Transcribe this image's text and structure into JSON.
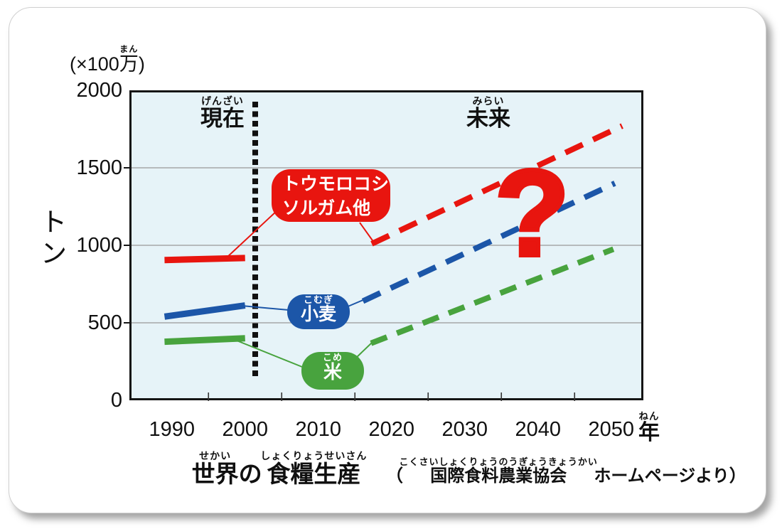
{
  "colors": {
    "corn_red": "#e8150f",
    "wheat_blue": "#1c56a8",
    "rice_green": "#48a33e",
    "plot_background": "#e6f3f8",
    "gridline": "#999999",
    "divider_black": "#101010"
  },
  "y_axis": {
    "unit_parts": [
      {
        "text": "(×100",
        "ruby": ""
      },
      {
        "text": "万",
        "ruby": "まん"
      },
      {
        "text": ")",
        "ruby": ""
      }
    ],
    "axis_title": "トン"
  },
  "x_axis": {
    "unit_parts": [
      {
        "text": "年",
        "ruby": "ねん"
      }
    ]
  },
  "period_labels": {
    "present_parts": [
      {
        "text": "現在",
        "ruby": "げんざい"
      }
    ],
    "future_parts": [
      {
        "text": "未来",
        "ruby": "みらい"
      }
    ]
  },
  "callouts": {
    "corn_line1": "トウモロコシ",
    "corn_line2": "ソルガム他",
    "wheat_parts": [
      {
        "text": "小麦",
        "ruby": "こむぎ"
      }
    ],
    "rice_parts": [
      {
        "text": "米",
        "ruby": "こめ"
      }
    ]
  },
  "annotation": {
    "question_mark": "?"
  },
  "footer": {
    "title_parts": [
      {
        "text": "世界",
        "ruby": "せかい"
      },
      {
        "text": "の",
        "ruby": ""
      },
      {
        "text": "食糧生産",
        "ruby": "しょくりょうせいさん"
      }
    ],
    "source_parts": [
      {
        "text": "（",
        "ruby": ""
      },
      {
        "text": "国際食料農業協会",
        "ruby": "こくさいしょくりょうのうぎょうきょうかい"
      },
      {
        "text": "ホームページより）",
        "ruby": ""
      }
    ]
  },
  "chart_data": {
    "type": "line",
    "title": "世界の食糧生産",
    "subtitle": "（国際食料農業協会ホームページより）",
    "xlabel": "年",
    "ylabel": "トン (×100万)",
    "ylim": [
      0,
      2000
    ],
    "y_ticks": [
      0,
      500,
      1000,
      1500,
      2000
    ],
    "y_gridlines": [
      500,
      1000,
      1500
    ],
    "x_ticks": [
      1990,
      2000,
      2010,
      2020,
      2030,
      2040,
      2050
    ],
    "divider_year": 2001.5,
    "zones": {
      "left_of_divider": "現在",
      "right_of_divider": "未来"
    },
    "grid": true,
    "legend_position": "on-chart callouts",
    "series": [
      {
        "name": "トウモロコシ・ソルガム他",
        "color": "#e8150f",
        "solid": [
          [
            1989,
            905
          ],
          [
            2000,
            918
          ]
        ],
        "dashed": [
          [
            2017.3,
            1010
          ],
          [
            2051.5,
            1770
          ]
        ],
        "dash_pattern": [
          27,
          16
        ]
      },
      {
        "name": "小麦",
        "color": "#1c56a8",
        "solid": [
          [
            1989,
            540
          ],
          [
            2000,
            612
          ]
        ],
        "dashed": [
          [
            2016.1,
            640
          ],
          [
            2050.5,
            1400
          ]
        ],
        "dash_pattern": [
          27,
          16
        ]
      },
      {
        "name": "米",
        "color": "#48a33e",
        "solid": [
          [
            1989,
            378
          ],
          [
            2000,
            400
          ]
        ],
        "dashed": [
          [
            2017.2,
            368
          ],
          [
            2050.3,
            975
          ]
        ],
        "dash_pattern": [
          24,
          15
        ]
      }
    ]
  }
}
